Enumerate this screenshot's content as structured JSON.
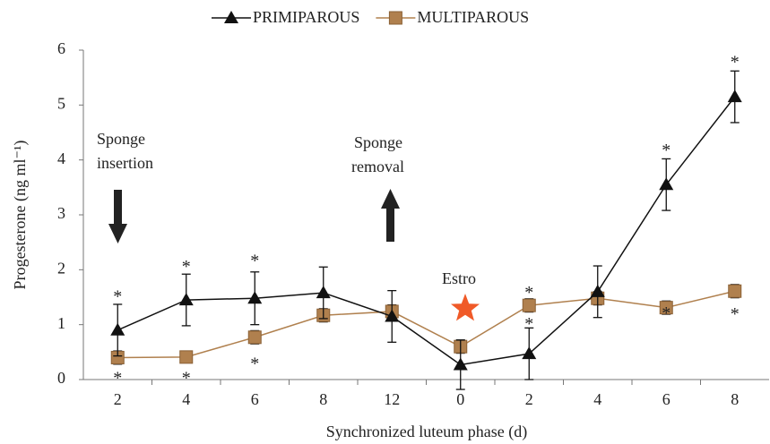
{
  "chart_data": {
    "type": "line",
    "x_label": "Synchronized luteum phase (d)",
    "y_label": "Progesterone (ng ml⁻¹)",
    "categories": [
      "2",
      "4",
      "6",
      "8",
      "12",
      "0",
      "2",
      "4",
      "6",
      "8"
    ],
    "series": [
      {
        "name": "PRIMIPAROUS",
        "color": "#111111",
        "marker": "triangle",
        "values": [
          0.9,
          1.45,
          1.48,
          1.58,
          1.15,
          0.27,
          0.47,
          1.6,
          3.55,
          5.15
        ],
        "errors": [
          0.47,
          0.47,
          0.48,
          0.47,
          0.47,
          0.45,
          0.47,
          0.47,
          0.47,
          0.47
        ]
      },
      {
        "name": "MULTIPAROUS",
        "color": "#b0804e",
        "marker": "square",
        "values": [
          0.4,
          0.41,
          0.77,
          1.17,
          1.24,
          0.6,
          1.35,
          1.48,
          1.31,
          1.61
        ],
        "errors": [
          0.12,
          0.1,
          0.12,
          0.12,
          0.12,
          0.12,
          0.12,
          0.12,
          0.12,
          0.12
        ]
      }
    ],
    "ylim": [
      0,
      6
    ],
    "yticks": [
      0,
      1,
      2,
      3,
      4,
      5,
      6
    ],
    "grid": false,
    "legend": "top",
    "annotations": [
      {
        "text": "*",
        "category": 0,
        "y": 1.55
      },
      {
        "text": "*",
        "category": 0,
        "y": 0.07
      },
      {
        "text": "*",
        "category": 1,
        "y": 2.1
      },
      {
        "text": "*",
        "category": 1,
        "y": 0.07
      },
      {
        "text": "*",
        "category": 2,
        "y": 2.2
      },
      {
        "text": "*",
        "category": 2,
        "y": 0.33
      },
      {
        "text": "*",
        "category": 6,
        "y": 1.62
      },
      {
        "text": "*",
        "category": 6,
        "y": 1.05
      },
      {
        "text": "*",
        "category": 8,
        "y": 4.22
      },
      {
        "text": "*",
        "category": 8,
        "y": 1.25
      },
      {
        "text": "*",
        "category": 9,
        "y": 5.82
      },
      {
        "text": "*",
        "category": 9,
        "y": 1.23
      }
    ],
    "notes": [
      {
        "lines": [
          "Sponge",
          "insertion"
        ]
      },
      {
        "lines": [
          "Sponge",
          "removal"
        ]
      },
      {
        "lines": [
          "Estro"
        ]
      }
    ]
  }
}
